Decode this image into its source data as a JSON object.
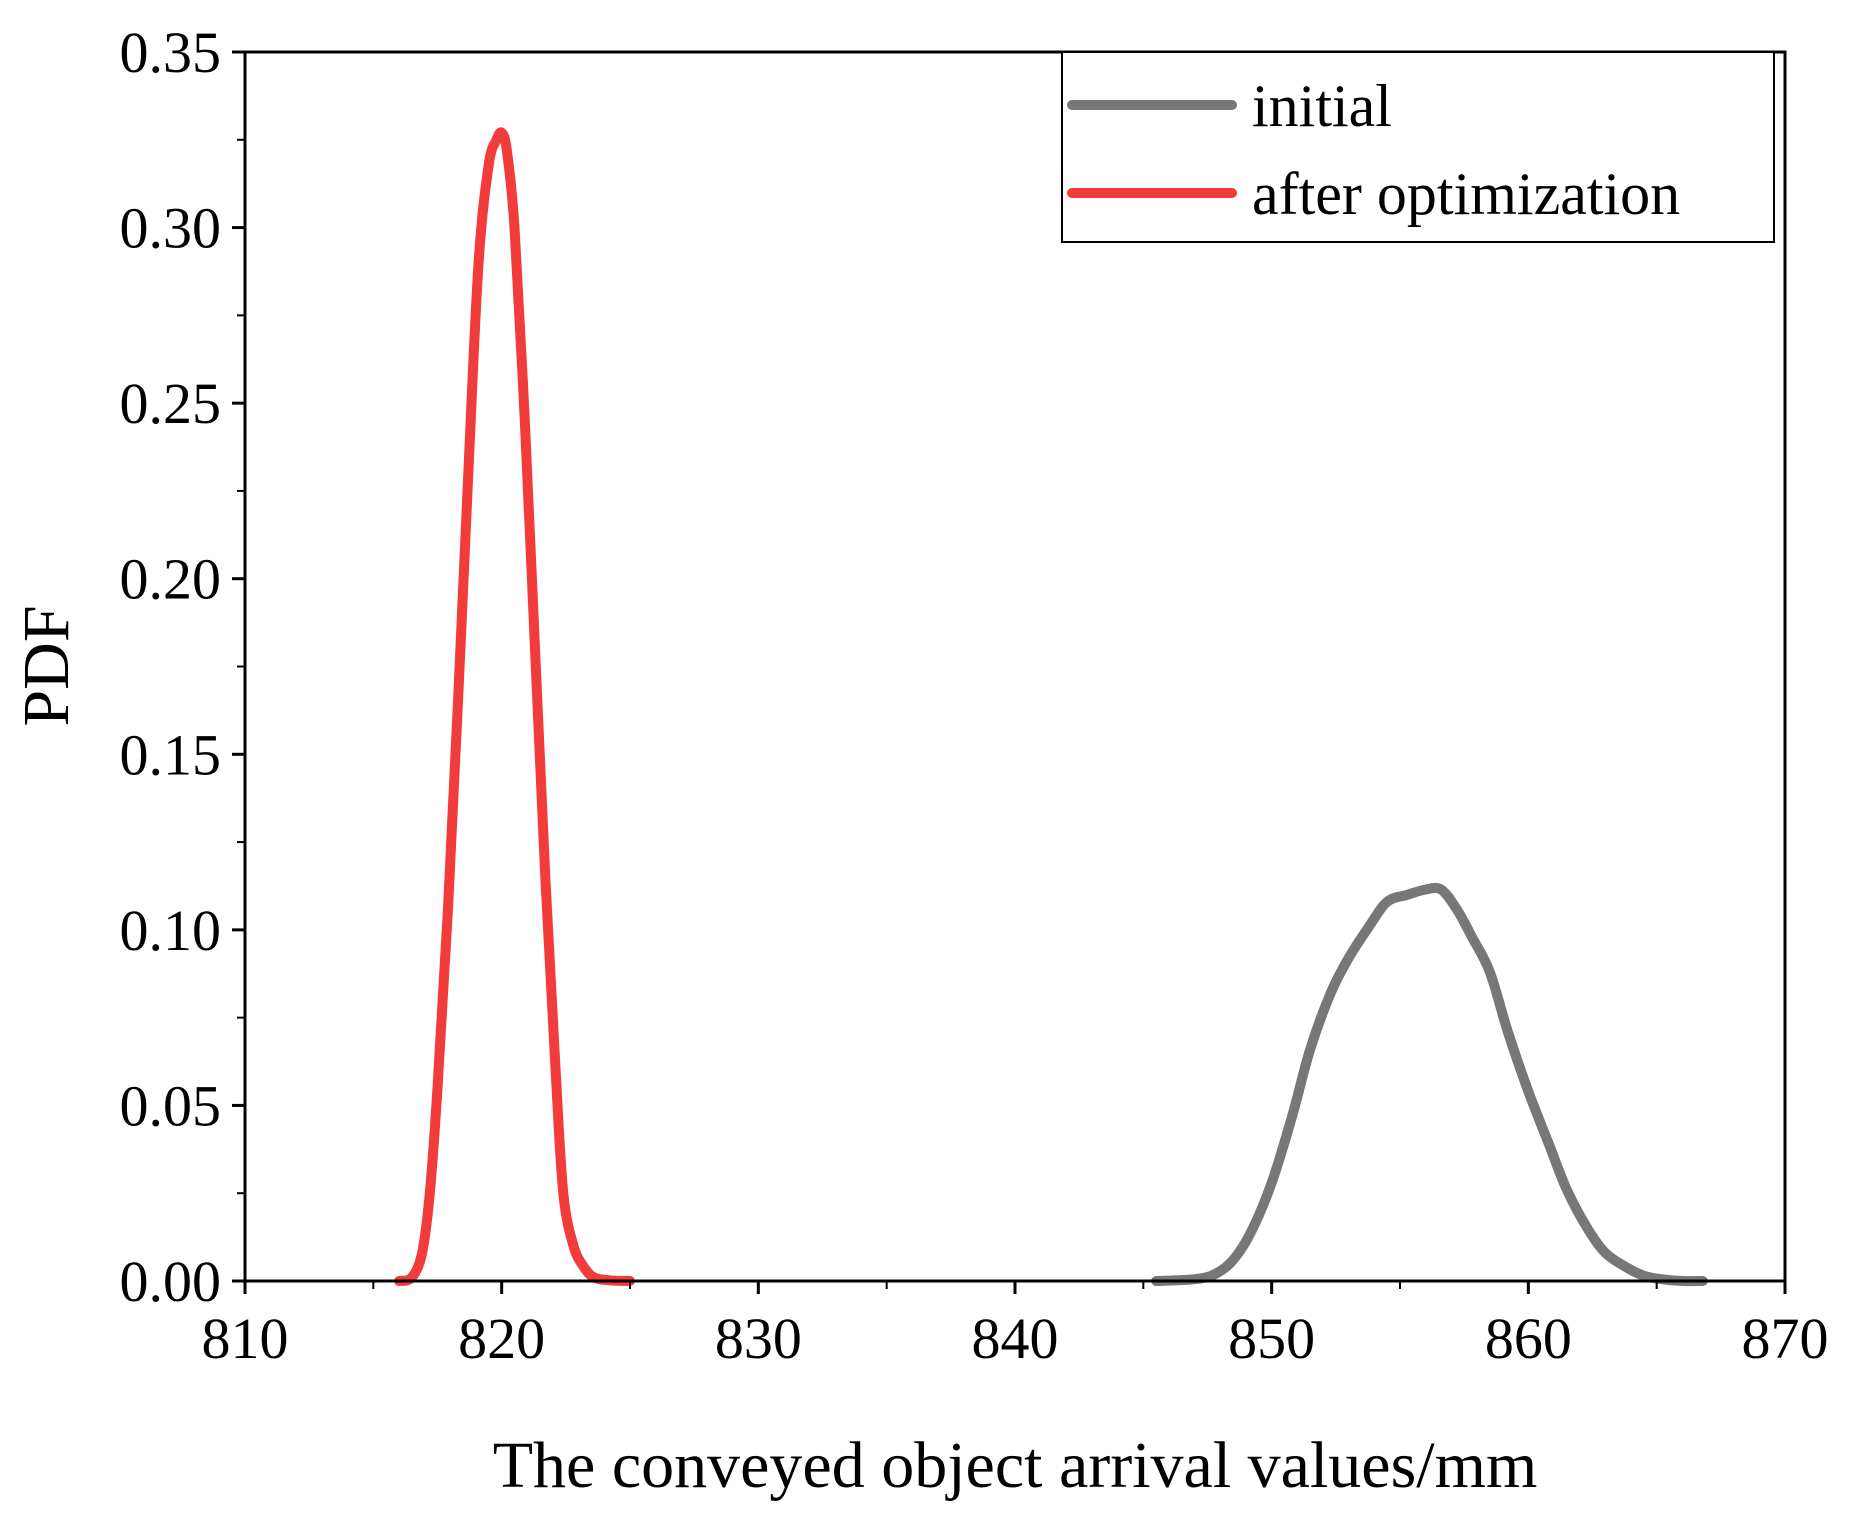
{
  "chart_data": {
    "type": "line",
    "title": "",
    "xlabel": "The conveyed object arrival values/mm",
    "ylabel": "PDF",
    "xlim": [
      810,
      870
    ],
    "ylim": [
      0,
      0.35
    ],
    "x_ticks": [
      810,
      820,
      830,
      840,
      850,
      860,
      870
    ],
    "x_tick_labels": [
      "810",
      "820",
      "830",
      "840",
      "850",
      "860",
      "870"
    ],
    "y_ticks": [
      0,
      0.05,
      0.1,
      0.15,
      0.2,
      0.25,
      0.3,
      0.35
    ],
    "y_tick_labels": [
      "0.00",
      "0.05",
      "0.10",
      "0.15",
      "0.20",
      "0.25",
      "0.30",
      "0.35"
    ],
    "grid": false,
    "legend_position": "top-right",
    "series": [
      {
        "name": "initial",
        "color": "#777777",
        "x": [
          845.5,
          847.0,
          847.8,
          848.5,
          849.2,
          850.0,
          850.8,
          851.5,
          852.3,
          853.0,
          853.8,
          854.5,
          855.3,
          856.0,
          856.6,
          857.2,
          857.8,
          858.5,
          859.2,
          860.0,
          860.8,
          861.5,
          862.3,
          863.0,
          863.8,
          864.5,
          865.2,
          866.0,
          866.8
        ],
        "y": [
          0.0,
          0.0005,
          0.002,
          0.006,
          0.014,
          0.028,
          0.047,
          0.066,
          0.082,
          0.092,
          0.101,
          0.108,
          0.11,
          0.1115,
          0.1115,
          0.106,
          0.098,
          0.088,
          0.071,
          0.054,
          0.039,
          0.026,
          0.015,
          0.008,
          0.004,
          0.0015,
          0.0005,
          0.0,
          0.0
        ]
      },
      {
        "name": "after optimization",
        "color": "#f23b3b",
        "x": [
          816.0,
          816.5,
          816.9,
          817.2,
          817.5,
          817.9,
          818.3,
          818.7,
          819.1,
          819.5,
          819.8,
          820.0,
          820.2,
          820.5,
          820.9,
          821.3,
          821.7,
          822.1,
          822.4,
          822.8,
          823.2,
          823.6,
          824.2,
          825.0
        ],
        "y": [
          0.0,
          0.001,
          0.008,
          0.025,
          0.055,
          0.105,
          0.165,
          0.23,
          0.29,
          0.318,
          0.325,
          0.327,
          0.322,
          0.3,
          0.245,
          0.18,
          0.115,
          0.06,
          0.025,
          0.01,
          0.004,
          0.001,
          0.0002,
          0.0
        ]
      }
    ]
  }
}
